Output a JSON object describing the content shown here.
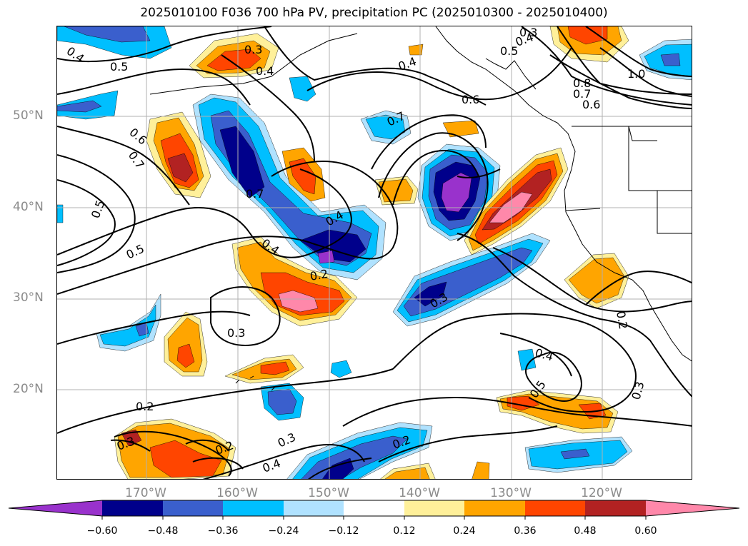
{
  "title": "2025010100 F036 700 hPa PV, precipitation PC (2025010300 - 2025010400)",
  "lat_labels": [
    "50°N",
    "40°N",
    "30°N",
    "20°N"
  ],
  "lon_labels": [
    "170°W",
    "160°W",
    "150°W",
    "140°W",
    "130°W",
    "120°W"
  ],
  "contour_labels": [
    "0.4",
    "0.5",
    "0.3",
    "0.4",
    "0.3",
    "0.5",
    "0.4",
    "1.0",
    "0.8",
    "0.7",
    "0.6",
    "0.6",
    "0.4",
    "0.6",
    "0.7",
    "0.7",
    "0.7",
    "0.5",
    "0.5",
    "0.4",
    "0.4",
    "0.2",
    "0.3",
    "0.3",
    "0.2",
    "0.4",
    "0.5",
    "0.3",
    "0.2",
    "0.3",
    "0.2",
    "0.3",
    "0.4",
    "0.2"
  ],
  "colorbar": {
    "ticks": [
      "−0.60",
      "−0.48",
      "−0.36",
      "−0.24",
      "−0.12",
      "0.12",
      "0.24",
      "0.36",
      "0.48",
      "0.60"
    ],
    "colors": [
      "#9932cc",
      "#00008b",
      "#3a5fcd",
      "#00bfff",
      "#b0e2ff",
      "#ffffff",
      "#fff09a",
      "#ffa500",
      "#ff4500",
      "#b22222",
      "#ff88aa"
    ]
  },
  "fill_colors": {
    "neg5": "#9932cc",
    "neg4": "#00008b",
    "neg3": "#3a5fcd",
    "neg2": "#00bfff",
    "neg1": "#b0e2ff",
    "pos1": "#fff09a",
    "pos2": "#ffa500",
    "pos3": "#ff4500",
    "pos4": "#b22222",
    "pos5": "#ff88aa"
  }
}
